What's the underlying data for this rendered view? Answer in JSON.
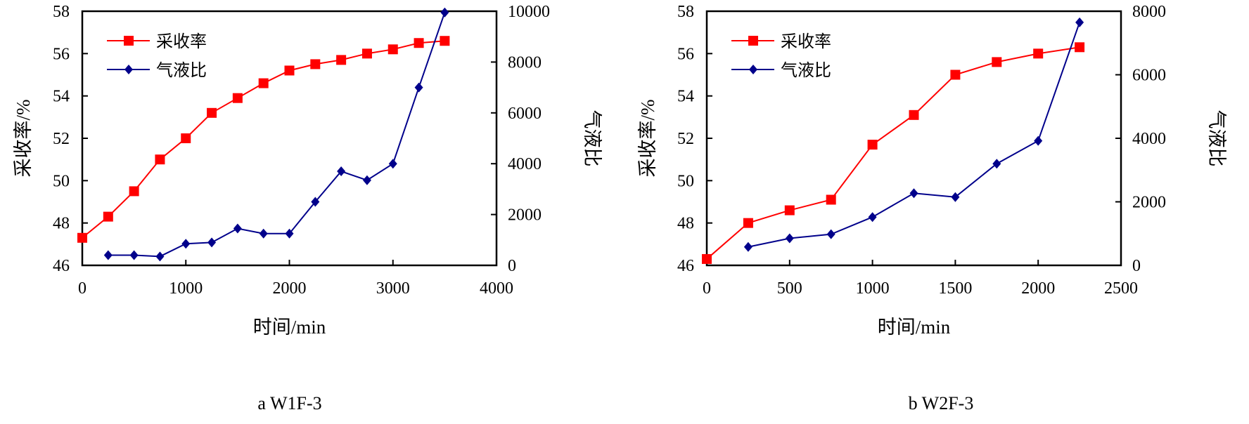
{
  "figure": {
    "captions": [
      "a  W1F-3",
      "b  W2F-3"
    ]
  },
  "chart_data": [
    {
      "type": "line",
      "panel_label": "a  W1F-3",
      "title": "",
      "xlabel": "时间/min",
      "ylabel_left": "采收率/%",
      "ylabel_right": "气液比",
      "xlim": [
        0,
        4000
      ],
      "xticks": [
        0,
        1000,
        2000,
        3000,
        4000
      ],
      "ylim_left": [
        46,
        58
      ],
      "yticks_left": [
        46,
        48,
        50,
        52,
        54,
        56,
        58
      ],
      "ylim_right": [
        0,
        10000
      ],
      "yticks_right": [
        0,
        2000,
        4000,
        6000,
        8000,
        10000
      ],
      "legend_position": "top-left",
      "series": [
        {
          "name": "采收率",
          "axis": "left",
          "color": "#ff0000",
          "marker": "square",
          "x": [
            0,
            250,
            500,
            750,
            1000,
            1250,
            1500,
            1750,
            2000,
            2250,
            2500,
            2750,
            3000,
            3250,
            3500
          ],
          "y": [
            47.3,
            48.3,
            49.5,
            51.0,
            52.0,
            53.2,
            53.9,
            54.6,
            55.2,
            55.5,
            55.7,
            56.0,
            56.2,
            56.5,
            56.6
          ]
        },
        {
          "name": "气液比",
          "axis": "right",
          "color": "#00008b",
          "marker": "diamond",
          "x": [
            250,
            500,
            750,
            1000,
            1250,
            1500,
            1750,
            2000,
            2250,
            2500,
            2750,
            3000,
            3250,
            3500
          ],
          "y": [
            400,
            400,
            350,
            850,
            900,
            1450,
            1250,
            1250,
            2500,
            3700,
            3350,
            4000,
            7000,
            9950
          ]
        }
      ]
    },
    {
      "type": "line",
      "panel_label": "b  W2F-3",
      "title": "",
      "xlabel": "时间/min",
      "ylabel_left": "采收率/%",
      "ylabel_right": "气液比",
      "xlim": [
        0,
        2500
      ],
      "xticks": [
        0,
        500,
        1000,
        1500,
        2000,
        2500
      ],
      "ylim_left": [
        46,
        58
      ],
      "yticks_left": [
        46,
        48,
        50,
        52,
        54,
        56,
        58
      ],
      "ylim_right": [
        0,
        8000
      ],
      "yticks_right": [
        0,
        2000,
        4000,
        6000,
        8000
      ],
      "legend_position": "top-left",
      "series": [
        {
          "name": "采收率",
          "axis": "left",
          "color": "#ff0000",
          "marker": "square",
          "x": [
            0,
            250,
            500,
            750,
            1000,
            1250,
            1500,
            1750,
            2000,
            2250
          ],
          "y": [
            46.3,
            48.0,
            48.6,
            49.1,
            51.7,
            53.1,
            55.0,
            55.6,
            56.0,
            56.3
          ]
        },
        {
          "name": "气液比",
          "axis": "right",
          "color": "#00008b",
          "marker": "diamond",
          "x": [
            250,
            500,
            750,
            1000,
            1250,
            1500,
            1750,
            2000,
            2250
          ],
          "y": [
            580,
            850,
            980,
            1520,
            2270,
            2150,
            3200,
            3920,
            7650
          ]
        }
      ]
    }
  ]
}
